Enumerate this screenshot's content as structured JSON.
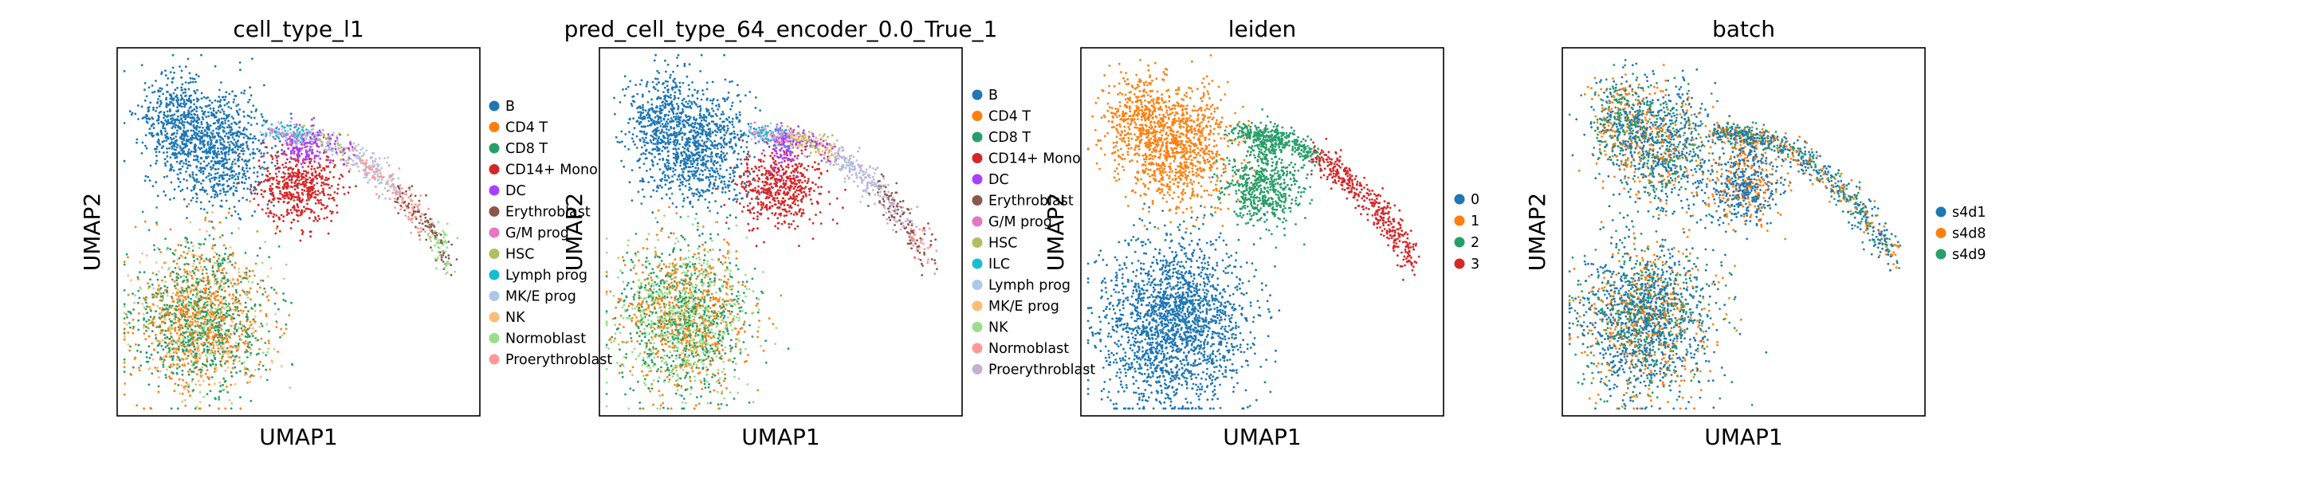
{
  "chart_data": [
    {
      "type": "scatter",
      "title": "cell_type_l1",
      "xlabel": "UMAP1",
      "ylabel": "UMAP2",
      "grid": false,
      "legend_position": "right-outside",
      "series": [
        {
          "name": "B",
          "color": "#1f77b4"
        },
        {
          "name": "CD4 T",
          "color": "#ff7f0e"
        },
        {
          "name": "CD8 T",
          "color": "#279e68"
        },
        {
          "name": "CD14+ Mono",
          "color": "#d62728"
        },
        {
          "name": "DC",
          "color": "#aa40fc"
        },
        {
          "name": "Erythroblast",
          "color": "#8c564b"
        },
        {
          "name": "G/M prog",
          "color": "#e377c2"
        },
        {
          "name": "HSC",
          "color": "#b5bd61"
        },
        {
          "name": "Lymph prog",
          "color": "#17becf"
        },
        {
          "name": "MK/E prog",
          "color": "#aec7e8"
        },
        {
          "name": "NK",
          "color": "#ffbb78"
        },
        {
          "name": "Normoblast",
          "color": "#98df8a"
        },
        {
          "name": "Proerythroblast",
          "color": "#ff9896"
        }
      ]
    },
    {
      "type": "scatter",
      "title": "pred_cell_type_64_encoder_0.0_True_1",
      "xlabel": "UMAP1",
      "ylabel": "UMAP2",
      "grid": false,
      "legend_position": "right-outside",
      "series": [
        {
          "name": "B",
          "color": "#1f77b4"
        },
        {
          "name": "CD4 T",
          "color": "#ff7f0e"
        },
        {
          "name": "CD8 T",
          "color": "#279e68"
        },
        {
          "name": "CD14+ Mono",
          "color": "#d62728"
        },
        {
          "name": "DC",
          "color": "#aa40fc"
        },
        {
          "name": "Erythroblast",
          "color": "#8c564b"
        },
        {
          "name": "G/M prog",
          "color": "#e377c2"
        },
        {
          "name": "HSC",
          "color": "#b5bd61"
        },
        {
          "name": "ILC",
          "color": "#17becf"
        },
        {
          "name": "Lymph prog",
          "color": "#aec7e8"
        },
        {
          "name": "MK/E prog",
          "color": "#ffbb78"
        },
        {
          "name": "NK",
          "color": "#98df8a"
        },
        {
          "name": "Normoblast",
          "color": "#ff9896"
        },
        {
          "name": "Proerythroblast",
          "color": "#c5b0d5"
        }
      ]
    },
    {
      "type": "scatter",
      "title": "leiden",
      "xlabel": "UMAP1",
      "ylabel": "UMAP2",
      "grid": false,
      "legend_position": "right-outside",
      "series": [
        {
          "name": "0",
          "color": "#1f77b4"
        },
        {
          "name": "1",
          "color": "#ff7f0e"
        },
        {
          "name": "2",
          "color": "#279e68"
        },
        {
          "name": "3",
          "color": "#d62728"
        }
      ]
    },
    {
      "type": "scatter",
      "title": "batch",
      "xlabel": "UMAP1",
      "ylabel": "UMAP2",
      "grid": false,
      "legend_position": "right-outside",
      "series": [
        {
          "name": "s4d1",
          "color": "#1f77b4"
        },
        {
          "name": "s4d8",
          "color": "#ff7f0e"
        },
        {
          "name": "s4d9",
          "color": "#279e68"
        }
      ]
    }
  ]
}
